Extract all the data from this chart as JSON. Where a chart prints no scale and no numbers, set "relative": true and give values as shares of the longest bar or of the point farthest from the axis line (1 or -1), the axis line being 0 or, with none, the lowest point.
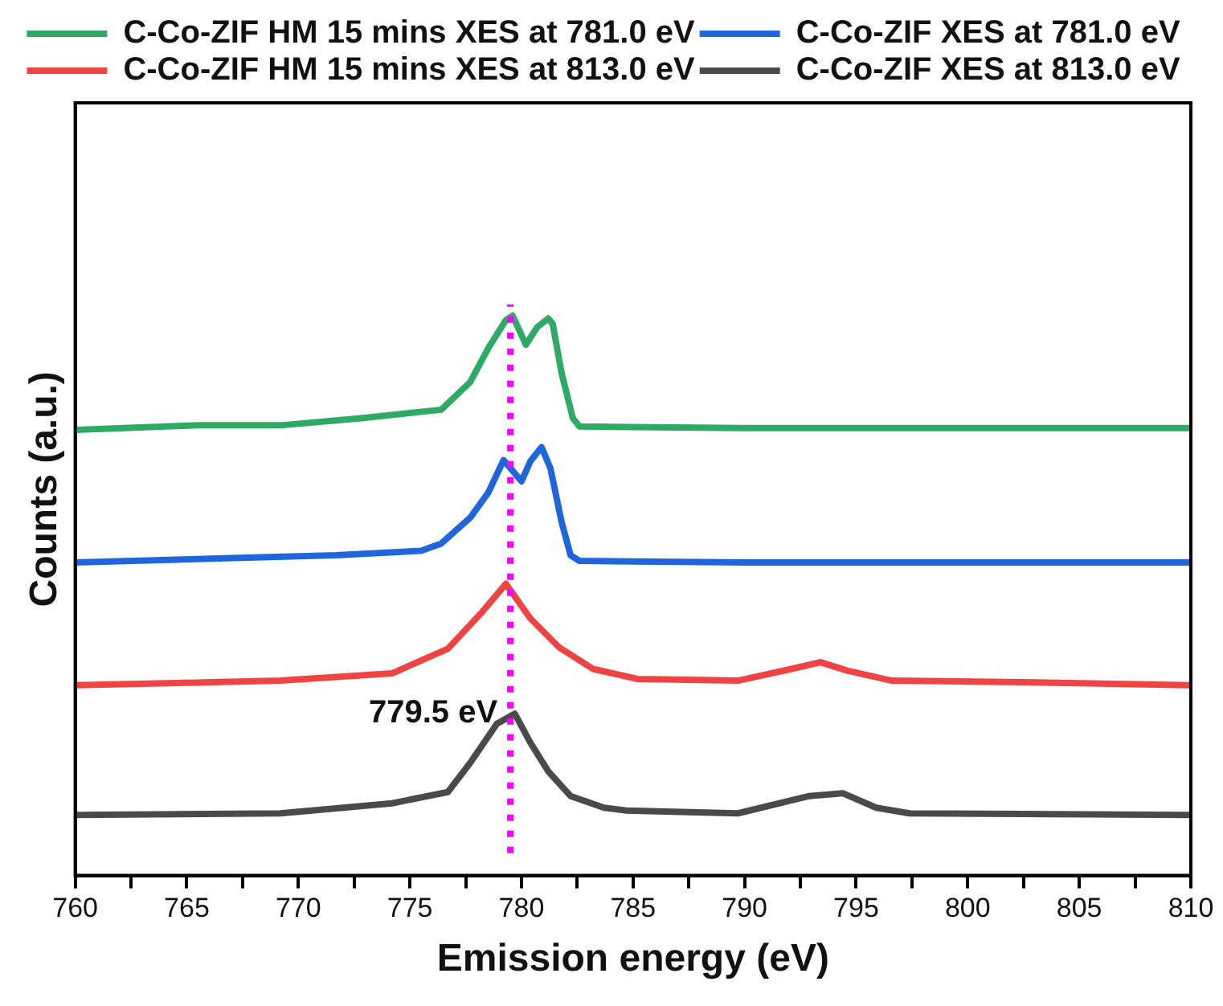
{
  "chart_data": {
    "type": "line",
    "xlabel": "Emission energy (eV)",
    "ylabel": "Counts (a.u.)",
    "relative": true,
    "xlim": [
      760,
      810
    ],
    "xticks": [
      760,
      {
        "value": 762.5,
        "label": null
      },
      765,
      {
        "value": 767.5,
        "label": null
      },
      770,
      {
        "value": 772.5,
        "label": null
      },
      775,
      {
        "value": 777.5,
        "label": null
      },
      780,
      {
        "value": 782.5,
        "label": null
      },
      785,
      {
        "value": 787.5,
        "label": null
      },
      790,
      {
        "value": 792.5,
        "label": null
      },
      795,
      {
        "value": 797.5,
        "label": null
      },
      800,
      {
        "value": 802.5,
        "label": null
      },
      805,
      {
        "value": 807.5,
        "label": null
      },
      810
    ],
    "legend": "top",
    "marker": "none",
    "line_style": "solid",
    "grid": false,
    "ref_lines": [
      {
        "axis": "x",
        "value": 779.5,
        "label": "779.5 eV",
        "color": "#ff00ff",
        "line_style": "dotted"
      }
    ],
    "series": [
      {
        "name": "C-Co-ZIF HM 15 mins XES at 781.0 eV",
        "color": "#2eaa66",
        "x": [
          760,
          765.5,
          769.2,
          772.9,
          776.4,
          777.7,
          778.5,
          779.3,
          779.6,
          780.2,
          780.7,
          781.2,
          781.4,
          781.8,
          782.3,
          782.6,
          790,
          800,
          810
        ],
        "values": [
          0.796,
          0.804,
          0.804,
          0.817,
          0.832,
          0.881,
          0.941,
          0.992,
          1.0,
          0.948,
          0.979,
          0.995,
          0.985,
          0.897,
          0.817,
          0.802,
          0.799,
          0.799,
          0.799
        ]
      },
      {
        "name": "C-Co-ZIF XES at 781.0 eV",
        "color": "#1f66dd",
        "x": [
          760,
          771.7,
          775.5,
          776.4,
          777.7,
          778.5,
          779.2,
          780.0,
          780.4,
          780.9,
          781.3,
          781.8,
          782.2,
          782.6,
          790,
          800,
          810
        ],
        "values": [
          0.559,
          0.572,
          0.58,
          0.593,
          0.639,
          0.683,
          0.742,
          0.704,
          0.74,
          0.765,
          0.727,
          0.631,
          0.572,
          0.562,
          0.559,
          0.559,
          0.559
        ]
      },
      {
        "name": "C-Co-ZIF HM 15 mins XES at 813.0 eV",
        "color": "#f04444",
        "x": [
          760,
          769.2,
          774.2,
          776.7,
          778.2,
          779.3,
          780.4,
          781.7,
          783.2,
          785.2,
          789.7,
          792.1,
          793.4,
          794.6,
          796.6,
          803,
          809.9
        ],
        "values": [
          0.34,
          0.348,
          0.361,
          0.405,
          0.469,
          0.521,
          0.459,
          0.407,
          0.369,
          0.351,
          0.348,
          0.369,
          0.381,
          0.366,
          0.348,
          0.345,
          0.34
        ]
      },
      {
        "name": "C-Co-ZIF XES at 813.0 eV",
        "color": "#4a4a4a",
        "x": [
          760,
          769.2,
          774.2,
          776.7,
          777.7,
          778.9,
          779.7,
          780.4,
          781.2,
          782.2,
          783.7,
          784.7,
          789.7,
          792.9,
          794.4,
          795.9,
          797.4,
          809.9
        ],
        "values": [
          0.108,
          0.111,
          0.129,
          0.149,
          0.201,
          0.271,
          0.289,
          0.237,
          0.186,
          0.142,
          0.121,
          0.116,
          0.111,
          0.142,
          0.147,
          0.121,
          0.111,
          0.108
        ]
      }
    ]
  }
}
